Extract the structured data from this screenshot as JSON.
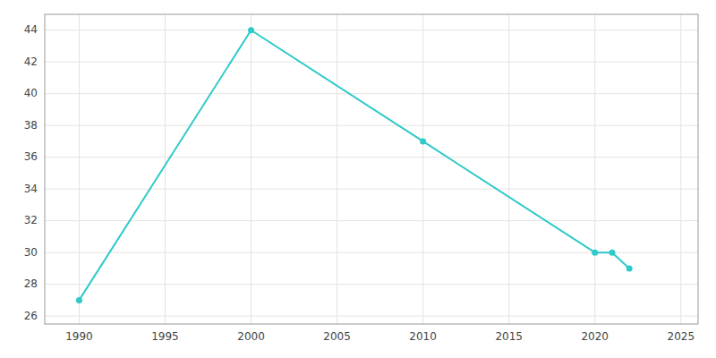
{
  "chart_data": {
    "type": "line",
    "x": [
      1990,
      2000,
      2010,
      2020,
      2021,
      2022
    ],
    "values": [
      27,
      44,
      37,
      30,
      30,
      29
    ],
    "color": "#2ec9c9",
    "marker": "circle",
    "xlim": [
      1988,
      2026
    ],
    "ylim": [
      25.5,
      45
    ],
    "xticks": [
      1990,
      1995,
      2000,
      2005,
      2010,
      2015,
      2020,
      2025
    ],
    "yticks": [
      26,
      28,
      30,
      32,
      34,
      36,
      38,
      40,
      42,
      44
    ],
    "grid": true
  }
}
